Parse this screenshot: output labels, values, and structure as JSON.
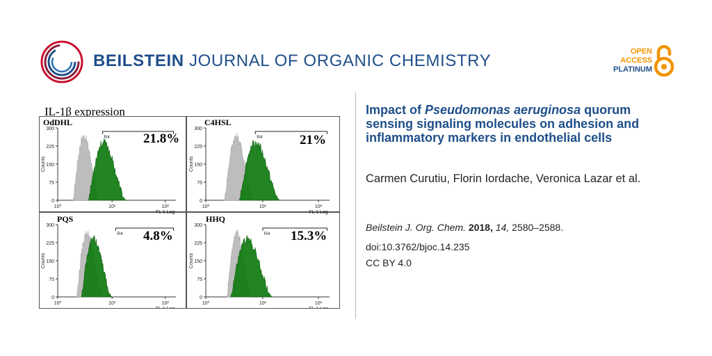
{
  "header": {
    "journal_name_bold": "BEILSTEIN",
    "journal_name_rest": "JOURNAL OF ORGANIC CHEMISTRY",
    "badge_line1": "OPEN",
    "badge_line2": "ACCESS",
    "badge_line3": "PLATINUM",
    "logo_icon": "beilstein-ring-logo",
    "badge_icon": "open-lock-icon"
  },
  "figure": {
    "title": "IL-1β expression",
    "panels": [
      {
        "label": "OdDHL",
        "percent": "21.8%",
        "gate": "R4"
      },
      {
        "label": "C4HSL",
        "percent": "21%",
        "gate": "R4"
      },
      {
        "label": "PQS",
        "percent": "4.8%",
        "gate": "R4"
      },
      {
        "label": "HHQ",
        "percent": "15.3%",
        "gate": "R4"
      }
    ],
    "yticks": [
      "0",
      "75",
      "150",
      "225",
      "300"
    ],
    "ylabel": "Counts",
    "xlabel": "FL 1 Log",
    "xticks": [
      "10⁰",
      "10¹",
      "10²"
    ]
  },
  "article": {
    "title_part1": "Impact of ",
    "title_italic": "Pseudomonas aeruginosa",
    "title_part2": " quorum sensing signaling molecules on adhesion and inflammatory markers in endothelial cells",
    "authors": "Carmen Curutiu, Florin Iordache, Veronica Lazar et al.",
    "journal_abbrev": "Beilstein J. Org. Chem.",
    "year": "2018,",
    "volume": "14,",
    "pages": "2580–2588.",
    "doi": "doi:10.3762/bjoc.14.235",
    "license": "CC BY 4.0"
  },
  "colors": {
    "brand_blue": "#1f4f8a",
    "oa_orange": "#f29400",
    "logo_red": "#c8102e",
    "histogram_green": "#0f7a0f",
    "histogram_gray": "#bdbdbd"
  }
}
